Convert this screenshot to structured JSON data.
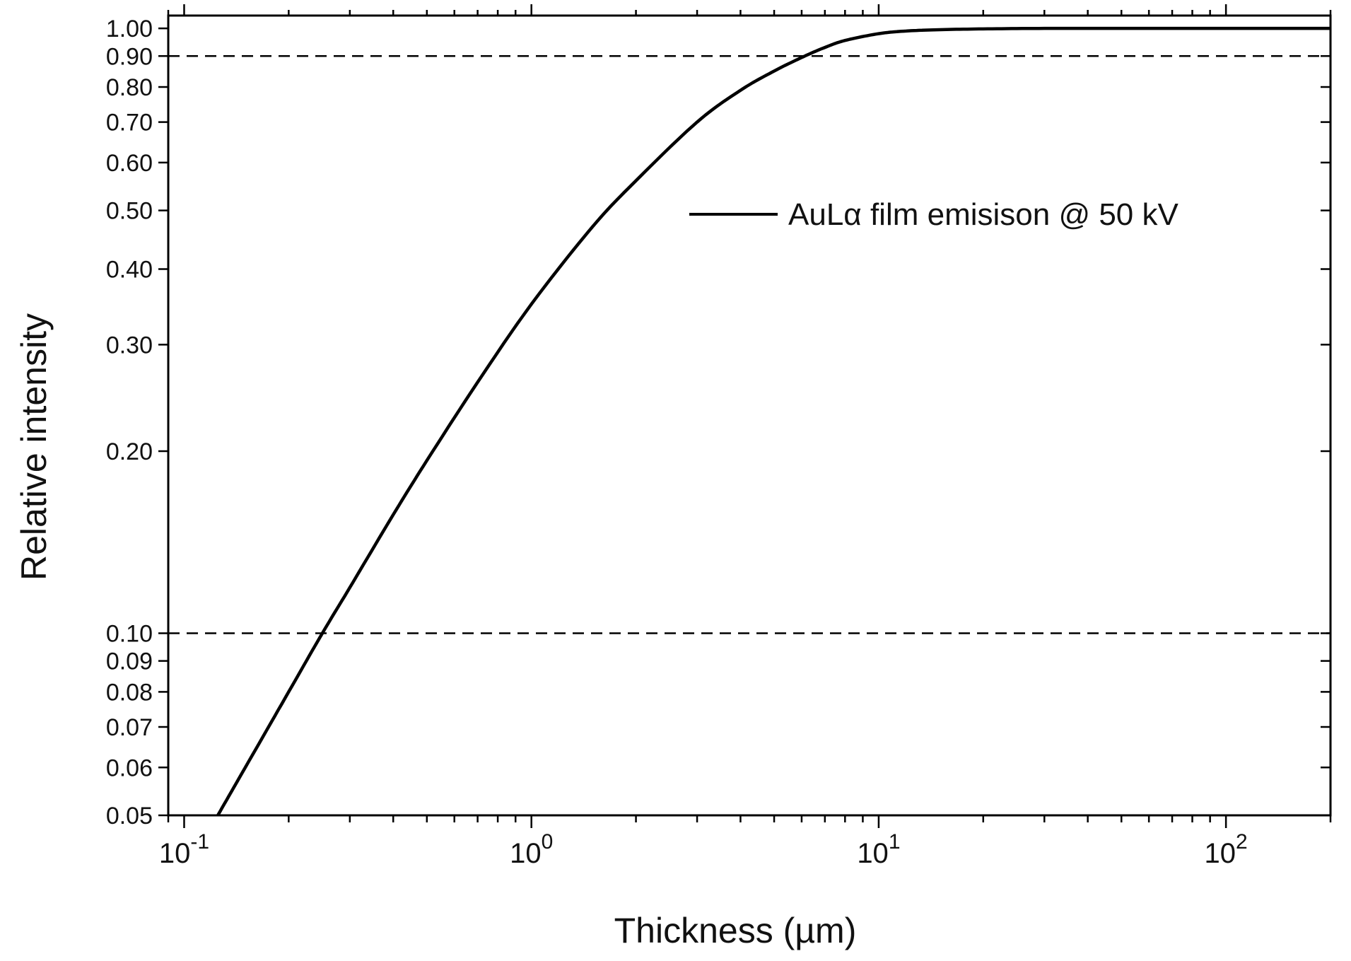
{
  "chart_data": {
    "type": "line",
    "title": "",
    "xlabel": "Thickness (µm)",
    "ylabel": "Relative intensity",
    "x_scale": "log",
    "y_scale": "log",
    "xlim": [
      0.09,
      200
    ],
    "ylim": [
      0.05,
      1.05
    ],
    "x_ticks": [
      {
        "value": 0.1,
        "base": "10",
        "exp": "-1"
      },
      {
        "value": 1,
        "base": "10",
        "exp": "0"
      },
      {
        "value": 10,
        "base": "10",
        "exp": "1"
      },
      {
        "value": 100,
        "base": "10",
        "exp": "2"
      }
    ],
    "y_ticks": [
      {
        "value": 0.05,
        "label": "0.05"
      },
      {
        "value": 0.06,
        "label": "0.06"
      },
      {
        "value": 0.07,
        "label": "0.07"
      },
      {
        "value": 0.08,
        "label": "0.08"
      },
      {
        "value": 0.09,
        "label": "0.09"
      },
      {
        "value": 0.1,
        "label": "0.10"
      },
      {
        "value": 0.2,
        "label": "0.20"
      },
      {
        "value": 0.3,
        "label": "0.30"
      },
      {
        "value": 0.4,
        "label": "0.40"
      },
      {
        "value": 0.5,
        "label": "0.50"
      },
      {
        "value": 0.6,
        "label": "0.60"
      },
      {
        "value": 0.7,
        "label": "0.70"
      },
      {
        "value": 0.8,
        "label": "0.80"
      },
      {
        "value": 0.9,
        "label": "0.90"
      },
      {
        "value": 1.0,
        "label": "1.00"
      }
    ],
    "reference_lines": [
      {
        "y": 0.9,
        "style": "dashed"
      },
      {
        "y": 0.1,
        "style": "dashed"
      }
    ],
    "series": [
      {
        "name": "AuLα film emisison @ 50 kV",
        "color": "#000000",
        "x": [
          0.125,
          0.15,
          0.2,
          0.25,
          0.3,
          0.4,
          0.5,
          0.7,
          1.0,
          1.5,
          2.0,
          3.0,
          4.0,
          5.0,
          6.0,
          7.0,
          8.0,
          10.0,
          12.0,
          15.0,
          20.0,
          30.0,
          50.0,
          100.0,
          200.0
        ],
        "y": [
          0.05,
          0.06,
          0.08,
          0.1,
          0.119,
          0.157,
          0.193,
          0.26,
          0.35,
          0.47,
          0.56,
          0.7,
          0.79,
          0.85,
          0.895,
          0.93,
          0.955,
          0.98,
          0.99,
          0.995,
          0.998,
          1.0,
          1.0,
          1.0,
          1.0
        ]
      }
    ],
    "legend": {
      "position": "upper-right",
      "entries": [
        "AuLα film emisison @ 50 kV"
      ]
    },
    "grid": false
  }
}
